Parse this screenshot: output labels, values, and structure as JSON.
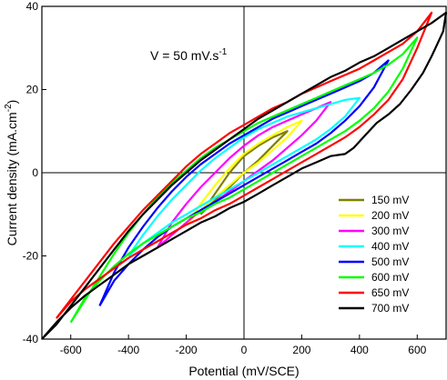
{
  "chart_data": {
    "type": "line",
    "xlabel": "Potential (mV/SCE)",
    "ylabel_main": "Current density (mA.cm",
    "ylabel_sup": "-2",
    "ylabel_end": ")",
    "annotation": "V = 50 mV.s",
    "annotation_sup": "-1",
    "xlim": [
      -700,
      700
    ],
    "ylim": [
      -40,
      40
    ],
    "xticks": [
      -600,
      -400,
      -200,
      0,
      200,
      400,
      600
    ],
    "yticks": [
      -40,
      -20,
      0,
      20,
      40
    ],
    "legend_position": "bottom-right",
    "series": [
      {
        "name": "150 mV",
        "color": "#808000",
        "vmin": -150,
        "vmax": 150,
        "imin": -10,
        "imax": 10,
        "forward": [
          [
            -150,
            -10
          ],
          [
            -100,
            -6.5
          ],
          [
            -50,
            -3.5
          ],
          [
            0,
            0
          ],
          [
            50,
            3
          ],
          [
            100,
            6.5
          ],
          [
            150,
            10
          ]
        ],
        "reverse": [
          [
            150,
            10
          ],
          [
            100,
            8.5
          ],
          [
            50,
            6.5
          ],
          [
            0,
            4
          ],
          [
            -50,
            0
          ],
          [
            -100,
            -5
          ],
          [
            -150,
            -10
          ]
        ]
      },
      {
        "name": "200 mV",
        "color": "#ffff00",
        "vmin": -200,
        "vmax": 200,
        "imin": -12.5,
        "imax": 12.5,
        "forward": [
          [
            -200,
            -12.5
          ],
          [
            -150,
            -9
          ],
          [
            -100,
            -6
          ],
          [
            -50,
            -3
          ],
          [
            0,
            0
          ],
          [
            50,
            2.5
          ],
          [
            100,
            5.5
          ],
          [
            150,
            8.5
          ],
          [
            200,
            12.5
          ]
        ],
        "reverse": [
          [
            200,
            12.5
          ],
          [
            150,
            11
          ],
          [
            100,
            9
          ],
          [
            50,
            7
          ],
          [
            0,
            4.5
          ],
          [
            -50,
            1
          ],
          [
            -100,
            -3
          ],
          [
            -150,
            -7.5
          ],
          [
            -200,
            -12.5
          ]
        ]
      },
      {
        "name": "300 mV",
        "color": "#ff00ff",
        "vmin": -300,
        "vmax": 300,
        "imin": -18,
        "imax": 17,
        "forward": [
          [
            -300,
            -18
          ],
          [
            -250,
            -15
          ],
          [
            -200,
            -12
          ],
          [
            -150,
            -9
          ],
          [
            -100,
            -7
          ],
          [
            -50,
            -4.5
          ],
          [
            0,
            -2
          ],
          [
            50,
            0.5
          ],
          [
            100,
            3
          ],
          [
            150,
            6
          ],
          [
            200,
            9
          ],
          [
            250,
            12.5
          ],
          [
            300,
            17
          ]
        ],
        "reverse": [
          [
            300,
            17
          ],
          [
            250,
            15.5
          ],
          [
            200,
            14
          ],
          [
            150,
            12.5
          ],
          [
            100,
            11
          ],
          [
            50,
            9
          ],
          [
            0,
            6.5
          ],
          [
            -50,
            3.5
          ],
          [
            -100,
            0
          ],
          [
            -150,
            -3.5
          ],
          [
            -200,
            -7.5
          ],
          [
            -250,
            -12
          ],
          [
            -300,
            -18
          ]
        ]
      },
      {
        "name": "400 mV",
        "color": "#00ffff",
        "vmin": -400,
        "vmax": 400,
        "imin": -20,
        "imax": 18,
        "forward": [
          [
            -400,
            -20
          ],
          [
            -350,
            -17
          ],
          [
            -300,
            -14.5
          ],
          [
            -250,
            -12
          ],
          [
            -200,
            -10
          ],
          [
            -150,
            -8
          ],
          [
            -100,
            -6
          ],
          [
            -50,
            -4
          ],
          [
            0,
            -2
          ],
          [
            50,
            0
          ],
          [
            100,
            2
          ],
          [
            150,
            4
          ],
          [
            200,
            6
          ],
          [
            250,
            8
          ],
          [
            300,
            10.5
          ],
          [
            350,
            13.5
          ],
          [
            400,
            18
          ]
        ],
        "reverse": [
          [
            400,
            18
          ],
          [
            350,
            17.5
          ],
          [
            300,
            16.5
          ],
          [
            250,
            15.5
          ],
          [
            200,
            14.5
          ],
          [
            150,
            13.5
          ],
          [
            100,
            12
          ],
          [
            50,
            10.5
          ],
          [
            0,
            8.5
          ],
          [
            -50,
            6
          ],
          [
            -100,
            3.5
          ],
          [
            -150,
            0.5
          ],
          [
            -200,
            -3
          ],
          [
            -250,
            -6.5
          ],
          [
            -300,
            -10.5
          ],
          [
            -350,
            -15
          ],
          [
            -400,
            -20
          ]
        ]
      },
      {
        "name": "500 mV",
        "color": "#0000ff",
        "vmin": -500,
        "vmax": 500,
        "imin": -32,
        "imax": 27,
        "forward": [
          [
            -500,
            -32
          ],
          [
            -450,
            -26
          ],
          [
            -400,
            -22
          ],
          [
            -350,
            -18.5
          ],
          [
            -300,
            -15.5
          ],
          [
            -250,
            -13
          ],
          [
            -200,
            -11
          ],
          [
            -150,
            -9
          ],
          [
            -100,
            -7
          ],
          [
            -50,
            -5
          ],
          [
            0,
            -3
          ],
          [
            50,
            -1
          ],
          [
            100,
            1
          ],
          [
            150,
            3
          ],
          [
            200,
            5
          ],
          [
            250,
            7
          ],
          [
            300,
            9.5
          ],
          [
            350,
            12.5
          ],
          [
            400,
            16
          ],
          [
            450,
            20.5
          ],
          [
            500,
            27
          ]
        ],
        "reverse": [
          [
            500,
            27
          ],
          [
            450,
            24
          ],
          [
            400,
            22
          ],
          [
            350,
            20.5
          ],
          [
            300,
            19
          ],
          [
            250,
            17.5
          ],
          [
            200,
            16
          ],
          [
            150,
            14.5
          ],
          [
            100,
            13
          ],
          [
            50,
            11
          ],
          [
            0,
            9
          ],
          [
            -50,
            7
          ],
          [
            -100,
            4.5
          ],
          [
            -150,
            2
          ],
          [
            -200,
            -1
          ],
          [
            -250,
            -4.5
          ],
          [
            -300,
            -8.5
          ],
          [
            -350,
            -13
          ],
          [
            -400,
            -18
          ],
          [
            -450,
            -24
          ],
          [
            -500,
            -32
          ]
        ]
      },
      {
        "name": "600 mV",
        "color": "#00ff00",
        "vmin": -600,
        "vmax": 600,
        "imin": -36,
        "imax": 32.5,
        "forward": [
          [
            -600,
            -36
          ],
          [
            -550,
            -30
          ],
          [
            -500,
            -26
          ],
          [
            -450,
            -22.5
          ],
          [
            -400,
            -19.5
          ],
          [
            -350,
            -17
          ],
          [
            -300,
            -15
          ],
          [
            -250,
            -13
          ],
          [
            -200,
            -11
          ],
          [
            -150,
            -9.5
          ],
          [
            -100,
            -7.5
          ],
          [
            -50,
            -6
          ],
          [
            0,
            -4
          ],
          [
            50,
            -2
          ],
          [
            100,
            0
          ],
          [
            150,
            2
          ],
          [
            200,
            4
          ],
          [
            250,
            6
          ],
          [
            300,
            8
          ],
          [
            350,
            10
          ],
          [
            400,
            12.5
          ],
          [
            450,
            15.5
          ],
          [
            500,
            19.5
          ],
          [
            550,
            25
          ],
          [
            600,
            32.5
          ]
        ],
        "reverse": [
          [
            600,
            32.5
          ],
          [
            550,
            28.5
          ],
          [
            500,
            26
          ],
          [
            450,
            24
          ],
          [
            400,
            22.5
          ],
          [
            350,
            21
          ],
          [
            300,
            19.5
          ],
          [
            250,
            18
          ],
          [
            200,
            16.5
          ],
          [
            150,
            15
          ],
          [
            100,
            13.5
          ],
          [
            50,
            12
          ],
          [
            0,
            10
          ],
          [
            -50,
            8
          ],
          [
            -100,
            6
          ],
          [
            -150,
            3.5
          ],
          [
            -200,
            0.5
          ],
          [
            -250,
            -2.5
          ],
          [
            -300,
            -6
          ],
          [
            -350,
            -10
          ],
          [
            -400,
            -14.5
          ],
          [
            -450,
            -19.5
          ],
          [
            -500,
            -25
          ],
          [
            -550,
            -30.5
          ],
          [
            -600,
            -36
          ]
        ]
      },
      {
        "name": "650 mV",
        "color": "#ff0000",
        "vmin": -650,
        "vmax": 650,
        "imin": -35,
        "imax": 38.5,
        "forward": [
          [
            -650,
            -35
          ],
          [
            -600,
            -31
          ],
          [
            -550,
            -28
          ],
          [
            -500,
            -25.5
          ],
          [
            -450,
            -23
          ],
          [
            -400,
            -20.5
          ],
          [
            -350,
            -18.5
          ],
          [
            -300,
            -16.5
          ],
          [
            -250,
            -14.5
          ],
          [
            -200,
            -12.5
          ],
          [
            -150,
            -11
          ],
          [
            -100,
            -9
          ],
          [
            -50,
            -7.5
          ],
          [
            0,
            -5.5
          ],
          [
            50,
            -3.5
          ],
          [
            100,
            -1.5
          ],
          [
            150,
            0.5
          ],
          [
            200,
            2.5
          ],
          [
            250,
            4.5
          ],
          [
            300,
            6.5
          ],
          [
            350,
            8.5
          ],
          [
            400,
            11
          ],
          [
            450,
            14
          ],
          [
            500,
            17.5
          ],
          [
            550,
            22.5
          ],
          [
            600,
            30
          ],
          [
            650,
            38.5
          ]
        ],
        "reverse": [
          [
            650,
            38.5
          ],
          [
            600,
            34
          ],
          [
            550,
            31
          ],
          [
            500,
            29
          ],
          [
            450,
            27
          ],
          [
            400,
            25
          ],
          [
            350,
            23.5
          ],
          [
            300,
            22
          ],
          [
            250,
            20.5
          ],
          [
            200,
            19
          ],
          [
            150,
            17
          ],
          [
            100,
            15.5
          ],
          [
            50,
            13.5
          ],
          [
            0,
            11.5
          ],
          [
            -50,
            9.5
          ],
          [
            -100,
            7
          ],
          [
            -150,
            4.5
          ],
          [
            -200,
            1.5
          ],
          [
            -250,
            -2
          ],
          [
            -300,
            -5.5
          ],
          [
            -350,
            -9
          ],
          [
            -400,
            -13
          ],
          [
            -450,
            -17
          ],
          [
            -500,
            -21.5
          ],
          [
            -550,
            -26
          ],
          [
            -600,
            -30.5
          ],
          [
            -650,
            -35
          ]
        ]
      },
      {
        "name": "700 mV",
        "color": "#000000",
        "vmin": -700,
        "vmax": 700,
        "imin": -40,
        "imax": 38.5,
        "forward": [
          [
            -700,
            -40
          ],
          [
            -650,
            -36
          ],
          [
            -600,
            -32.5
          ],
          [
            -550,
            -29.5
          ],
          [
            -500,
            -27
          ],
          [
            -450,
            -24.5
          ],
          [
            -400,
            -22
          ],
          [
            -350,
            -20
          ],
          [
            -300,
            -18
          ],
          [
            -250,
            -16
          ],
          [
            -200,
            -14
          ],
          [
            -150,
            -12
          ],
          [
            -100,
            -10.5
          ],
          [
            -50,
            -8.5
          ],
          [
            0,
            -7
          ],
          [
            50,
            -5
          ],
          [
            100,
            -3
          ],
          [
            150,
            -1
          ],
          [
            200,
            1
          ],
          [
            250,
            2.5
          ],
          [
            300,
            4
          ],
          [
            350,
            4.5
          ],
          [
            380,
            6
          ],
          [
            420,
            9
          ],
          [
            460,
            12
          ],
          [
            500,
            14
          ],
          [
            540,
            16.5
          ],
          [
            580,
            20
          ],
          [
            620,
            24
          ],
          [
            650,
            28
          ],
          [
            670,
            31
          ],
          [
            690,
            34
          ],
          [
            700,
            38.5
          ]
        ],
        "reverse": [
          [
            700,
            38.5
          ],
          [
            650,
            36
          ],
          [
            600,
            34
          ],
          [
            550,
            32
          ],
          [
            500,
            30
          ],
          [
            450,
            28
          ],
          [
            400,
            26.5
          ],
          [
            350,
            24.5
          ],
          [
            300,
            23
          ],
          [
            250,
            21
          ],
          [
            200,
            19
          ],
          [
            150,
            17
          ],
          [
            100,
            15
          ],
          [
            50,
            13
          ],
          [
            0,
            10.5
          ],
          [
            -50,
            8
          ],
          [
            -100,
            5.5
          ],
          [
            -150,
            3
          ],
          [
            -200,
            0
          ],
          [
            -250,
            -3
          ],
          [
            -300,
            -6.5
          ],
          [
            -350,
            -10
          ],
          [
            -400,
            -14
          ],
          [
            -450,
            -18.5
          ],
          [
            -500,
            -23
          ],
          [
            -550,
            -27.5
          ],
          [
            -600,
            -32
          ],
          [
            -650,
            -36.5
          ],
          [
            -700,
            -40
          ]
        ]
      }
    ]
  }
}
